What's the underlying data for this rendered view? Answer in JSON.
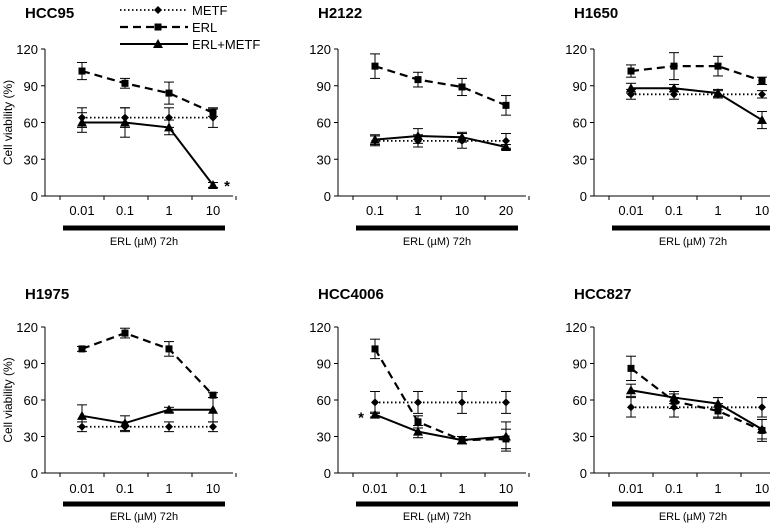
{
  "chart_data": {
    "type": "line",
    "ylabel": "Cell viability (%)",
    "xlabel": "ERL (µM)  72h",
    "ylim": [
      0,
      120
    ],
    "yticks": [
      0,
      30,
      60,
      90,
      120
    ],
    "legend": {
      "placement": "top",
      "entries": [
        {
          "name": "METF",
          "style": "dotted",
          "marker": "diamond"
        },
        {
          "name": "ERL",
          "style": "dashed",
          "marker": "square"
        },
        {
          "name": "ERL+METF",
          "style": "solid",
          "marker": "triangle"
        }
      ]
    },
    "panels": [
      {
        "title": "HCC95",
        "categories": [
          "0.01",
          "0.1",
          "1",
          "10"
        ],
        "annotation": "*",
        "annotation_at": "ERL+METF last point",
        "series": [
          {
            "name": "METF",
            "values": [
              64,
              64,
              64,
              64
            ],
            "errors": [
              8,
              8,
              8,
              8
            ]
          },
          {
            "name": "ERL",
            "values": [
              102,
              92,
              84,
              68
            ],
            "errors": [
              7,
              4,
              9,
              3
            ]
          },
          {
            "name": "ERL+METF",
            "values": [
              60,
              60,
              56,
              9
            ],
            "errors": [
              8,
              12,
              6,
              2
            ]
          }
        ]
      },
      {
        "title": "H2122",
        "categories": [
          "0.1",
          "1",
          "10",
          "20"
        ],
        "series": [
          {
            "name": "METF",
            "values": [
              45,
              45,
              45,
              45
            ],
            "errors": [
              4,
              5,
              6,
              6
            ]
          },
          {
            "name": "ERL",
            "values": [
              106,
              95,
              89,
              74
            ],
            "errors": [
              10,
              6,
              7,
              8
            ]
          },
          {
            "name": "ERL+METF",
            "values": [
              46,
              49,
              48,
              40
            ],
            "errors": [
              4,
              6,
              4,
              2
            ]
          }
        ]
      },
      {
        "title": "H1650",
        "categories": [
          "0.01",
          "0.1",
          "1",
          "10"
        ],
        "series": [
          {
            "name": "METF",
            "values": [
              83,
              83,
              83,
              83
            ],
            "errors": [
              4,
              4,
              3,
              3
            ]
          },
          {
            "name": "ERL",
            "values": [
              102,
              106,
              106,
              94
            ],
            "errors": [
              5,
              11,
              8,
              3
            ]
          },
          {
            "name": "ERL+METF",
            "values": [
              88,
              88,
              84,
              62
            ],
            "errors": [
              4,
              3,
              3,
              7
            ]
          }
        ]
      },
      {
        "title": "H1975",
        "categories": [
          "0.01",
          "0.1",
          "1",
          "10"
        ],
        "series": [
          {
            "name": "METF",
            "values": [
              38,
              38,
              38,
              38
            ],
            "errors": [
              4,
              4,
              4,
              4
            ]
          },
          {
            "name": "ERL",
            "values": [
              102,
              115,
              102,
              64
            ],
            "errors": [
              2,
              4,
              6,
              2
            ]
          },
          {
            "name": "ERL+METF",
            "values": [
              47,
              41,
              52,
              52
            ],
            "errors": [
              9,
              6,
              2,
              10
            ]
          }
        ]
      },
      {
        "title": "HCC4006",
        "categories": [
          "0.01",
          "0.1",
          "1",
          "10"
        ],
        "annotation": "*",
        "annotation_at": "ERL+METF first point",
        "series": [
          {
            "name": "METF",
            "values": [
              58,
              58,
              58,
              58
            ],
            "errors": [
              9,
              9,
              9,
              9
            ]
          },
          {
            "name": "ERL",
            "values": [
              102,
              42,
              27,
              28
            ],
            "errors": [
              8,
              5,
              3,
              8
            ]
          },
          {
            "name": "ERL+METF",
            "values": [
              48,
              34,
              27,
              30
            ],
            "errors": [
              2,
              5,
              3,
              12
            ]
          }
        ]
      },
      {
        "title": "HCC827",
        "categories": [
          "0.01",
          "0.1",
          "1",
          "10"
        ],
        "series": [
          {
            "name": "METF",
            "values": [
              54,
              54,
              54,
              54
            ],
            "errors": [
              8,
              8,
              8,
              8
            ]
          },
          {
            "name": "ERL",
            "values": [
              86,
              59,
              51,
              35
            ],
            "errors": [
              10,
              6,
              6,
              9
            ]
          },
          {
            "name": "ERL+METF",
            "values": [
              68,
              62,
              57,
              36
            ],
            "errors": [
              5,
              5,
              5,
              8
            ]
          }
        ]
      }
    ]
  }
}
